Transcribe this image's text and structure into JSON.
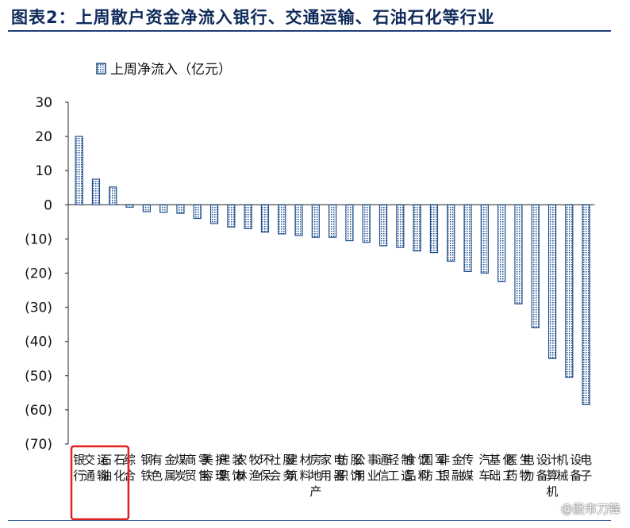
{
  "chart_data": {
    "type": "bar",
    "title": "图表2：上周散户资金净流入银行、交通运输、石油石化等行业",
    "legend": "上周净流入（亿元）",
    "legend_position": "top-left",
    "ylim": [
      -70,
      30
    ],
    "yticks": [
      "30",
      "20",
      "10",
      "0",
      "(10)",
      "(20)",
      "(30)",
      "(40)",
      "(50)",
      "(60)",
      "(70)"
    ],
    "yticks_values": [
      30,
      20,
      10,
      0,
      -10,
      -20,
      -30,
      -40,
      -50,
      -60,
      -70
    ],
    "grid": false,
    "categories": [
      "银行",
      "交通运输",
      "石油石化",
      "综合",
      "钢铁",
      "有色金属",
      "煤炭",
      "商贸零售",
      "美容护理",
      "建筑装饰",
      "农林牧渔",
      "环保",
      "社会服务",
      "建筑材料",
      "房地产",
      "家用电器",
      "纺织服饰",
      "公用事业",
      "通信",
      "轻工制造",
      "食品饮料",
      "国防军工",
      "非银金融",
      "传媒",
      "汽车",
      "基础化工",
      "医药生物",
      "电力设备",
      "计算机",
      "机械设备",
      "电子"
    ],
    "values": [
      20,
      7.5,
      5.2,
      -0.7,
      -2,
      -2.2,
      -2.5,
      -4,
      -5.5,
      -6.5,
      -7,
      -8,
      -8.5,
      -9,
      -9.5,
      -9.5,
      -10.5,
      -11,
      -12,
      -12.5,
      -13.5,
      -14,
      -16.5,
      -19.5,
      -20,
      -22.5,
      -29,
      -36,
      -45,
      -50.5,
      -58.5
    ],
    "highlight_count": 3,
    "colors": {
      "bar": "#1f4e8c",
      "highlight": "#e02020",
      "axis": "#222222"
    }
  },
  "watermark": "@股市刀锋"
}
